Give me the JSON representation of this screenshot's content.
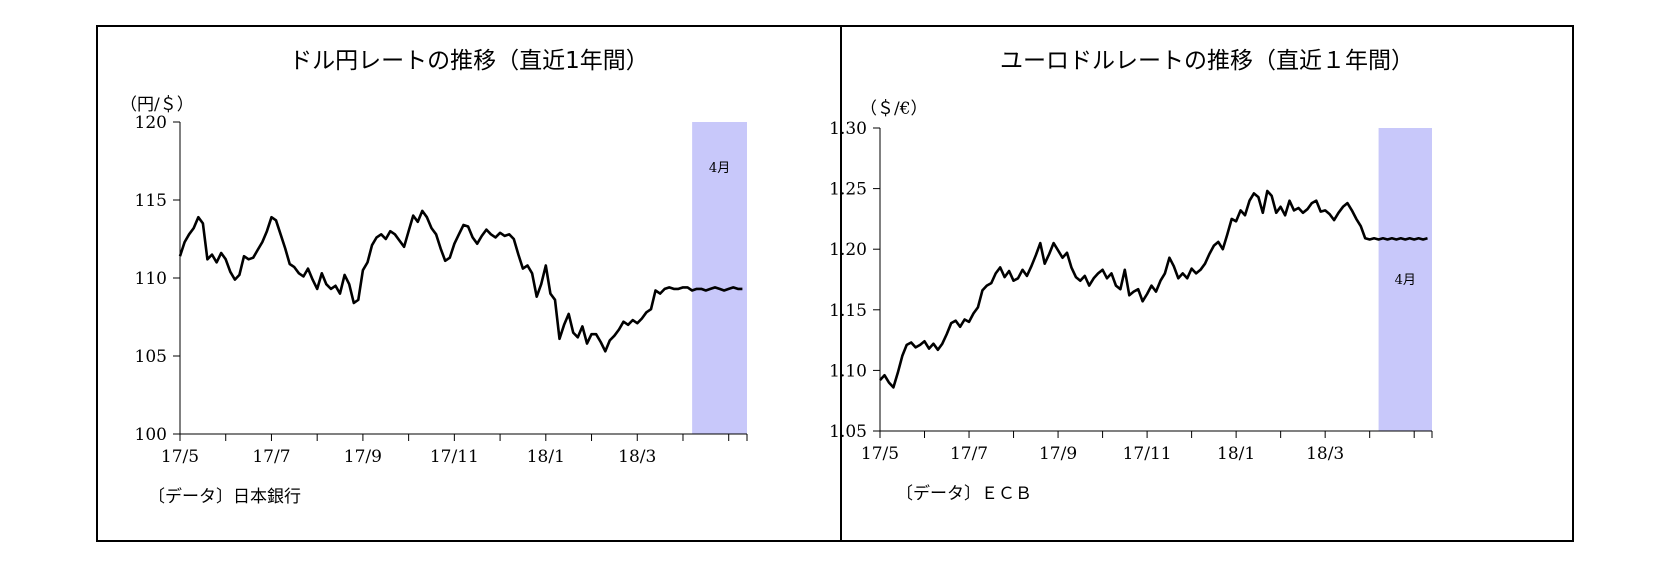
{
  "charts": [
    {
      "id": "usdjpy",
      "title": "ドル円レートの推移（直近1年間）",
      "unit": "（円/＄）",
      "source": "〔データ〕日本銀行",
      "highlight_label": "4月",
      "colors": {
        "line": "#000000",
        "highlight": "#c8c8fa"
      }
    },
    {
      "id": "eurusd",
      "title": "ユーロドルレートの推移（直近１年間）",
      "unit": "（＄/€）",
      "source": "〔データ〕ＥＣＢ",
      "highlight_label": "4月",
      "colors": {
        "line": "#000000",
        "highlight": "#c8c8fa"
      }
    }
  ],
  "chart_data": [
    {
      "type": "line",
      "title": "ドル円レートの推移（直近1年間）",
      "ylabel": "（円/＄）",
      "ylim": [
        100,
        120
      ],
      "yticks": [
        100,
        105,
        110,
        115,
        120
      ],
      "ytick_labels": [
        "100",
        "105",
        "110",
        "115",
        "120"
      ],
      "xlim": [
        0,
        12.4
      ],
      "xticks": [
        0,
        2,
        4,
        6,
        8,
        10
      ],
      "xtick_labels": [
        "17/5",
        "17/7",
        "17/9",
        "17/11",
        "18/1",
        "18/3"
      ],
      "shaded_range": [
        11.2,
        12.4
      ],
      "shaded_label": "4月",
      "x": [
        0.0,
        0.1,
        0.2,
        0.3,
        0.4,
        0.5,
        0.6,
        0.7,
        0.8,
        0.9,
        1.0,
        1.1,
        1.2,
        1.3,
        1.4,
        1.5,
        1.6,
        1.7,
        1.8,
        1.9,
        2.0,
        2.1,
        2.2,
        2.3,
        2.4,
        2.5,
        2.6,
        2.7,
        2.8,
        2.9,
        3.0,
        3.1,
        3.2,
        3.3,
        3.4,
        3.5,
        3.6,
        3.7,
        3.8,
        3.9,
        4.0,
        4.1,
        4.2,
        4.3,
        4.4,
        4.5,
        4.6,
        4.7,
        4.8,
        4.9,
        5.0,
        5.1,
        5.2,
        5.3,
        5.4,
        5.5,
        5.6,
        5.7,
        5.8,
        5.9,
        6.0,
        6.1,
        6.2,
        6.3,
        6.4,
        6.5,
        6.6,
        6.7,
        6.8,
        6.9,
        7.0,
        7.1,
        7.2,
        7.3,
        7.4,
        7.5,
        7.6,
        7.7,
        7.8,
        7.9,
        8.0,
        8.1,
        8.2,
        8.3,
        8.4,
        8.5,
        8.6,
        8.7,
        8.8,
        8.9,
        9.0,
        9.1,
        9.2,
        9.3,
        9.4,
        9.5,
        9.6,
        9.7,
        9.8,
        9.9,
        10.0,
        10.1,
        10.2,
        10.3,
        10.4,
        10.5,
        10.6,
        10.7,
        10.8,
        10.9,
        11.0,
        11.1,
        11.2,
        11.3,
        11.4,
        11.5,
        11.6,
        11.7,
        11.8,
        11.9,
        12.0,
        12.1,
        12.2,
        12.3
      ],
      "series": [
        {
          "values": [
            111.4,
            112.3,
            112.8,
            113.2,
            113.9,
            113.5,
            111.2,
            111.5,
            111.0,
            111.6,
            111.2,
            110.4,
            109.9,
            110.2,
            111.4,
            111.2,
            111.3,
            111.8,
            112.3,
            113.0,
            113.9,
            113.7,
            112.8,
            111.9,
            110.9,
            110.7,
            110.3,
            110.1,
            110.6,
            109.9,
            109.3,
            110.3,
            109.6,
            109.3,
            109.5,
            109.0,
            110.2,
            109.6,
            108.4,
            108.6,
            110.5,
            111.0,
            112.1,
            112.6,
            112.8,
            112.5,
            113.0,
            112.8,
            112.4,
            112.0,
            113.0,
            114.0,
            113.6,
            114.3,
            113.9,
            113.2,
            112.8,
            111.9,
            111.1,
            111.3,
            112.2,
            112.8,
            113.4,
            113.3,
            112.6,
            112.2,
            112.7,
            113.1,
            112.8,
            112.6,
            112.9,
            112.7,
            112.8,
            112.5,
            111.5,
            110.6,
            110.8,
            110.3,
            108.8,
            109.6,
            110.8,
            109.0,
            108.6,
            106.1,
            107.0,
            107.7,
            106.5,
            106.2,
            106.9,
            105.8,
            106.4,
            106.4,
            105.9,
            105.3,
            106.0,
            106.3,
            106.7,
            107.2,
            107.0,
            107.3,
            107.1,
            107.4,
            107.8,
            108.0,
            109.2,
            109.0,
            109.3,
            109.4,
            109.3,
            109.3,
            109.4,
            109.4,
            109.2,
            109.3,
            109.3,
            109.2,
            109.3,
            109.4,
            109.3,
            109.2,
            109.3,
            109.4,
            109.3,
            109.3
          ]
        }
      ]
    },
    {
      "type": "line",
      "title": "ユーロドルレートの推移（直近１年間）",
      "ylabel": "（＄/€）",
      "ylim": [
        1.05,
        1.3
      ],
      "yticks": [
        1.05,
        1.1,
        1.15,
        1.2,
        1.25,
        1.3
      ],
      "ytick_labels": [
        "1.05",
        "1.10",
        "1.15",
        "1.20",
        "1.25",
        "1.30"
      ],
      "xlim": [
        0,
        12.4
      ],
      "xticks": [
        0,
        2,
        4,
        6,
        8,
        10
      ],
      "xtick_labels": [
        "17/5",
        "17/7",
        "17/9",
        "17/11",
        "18/1",
        "18/3"
      ],
      "shaded_range": [
        11.2,
        12.4
      ],
      "shaded_label": "4月",
      "x": [
        0.0,
        0.1,
        0.2,
        0.3,
        0.4,
        0.5,
        0.6,
        0.7,
        0.8,
        0.9,
        1.0,
        1.1,
        1.2,
        1.3,
        1.4,
        1.5,
        1.6,
        1.7,
        1.8,
        1.9,
        2.0,
        2.1,
        2.2,
        2.3,
        2.4,
        2.5,
        2.6,
        2.7,
        2.8,
        2.9,
        3.0,
        3.1,
        3.2,
        3.3,
        3.4,
        3.5,
        3.6,
        3.7,
        3.8,
        3.9,
        4.0,
        4.1,
        4.2,
        4.3,
        4.4,
        4.5,
        4.6,
        4.7,
        4.8,
        4.9,
        5.0,
        5.1,
        5.2,
        5.3,
        5.4,
        5.5,
        5.6,
        5.7,
        5.8,
        5.9,
        6.0,
        6.1,
        6.2,
        6.3,
        6.4,
        6.5,
        6.6,
        6.7,
        6.8,
        6.9,
        7.0,
        7.1,
        7.2,
        7.3,
        7.4,
        7.5,
        7.6,
        7.7,
        7.8,
        7.9,
        8.0,
        8.1,
        8.2,
        8.3,
        8.4,
        8.5,
        8.6,
        8.7,
        8.8,
        8.9,
        9.0,
        9.1,
        9.2,
        9.3,
        9.4,
        9.5,
        9.6,
        9.7,
        9.8,
        9.9,
        10.0,
        10.1,
        10.2,
        10.3,
        10.4,
        10.5,
        10.6,
        10.7,
        10.8,
        10.9,
        11.0,
        11.1,
        11.2,
        11.3,
        11.4,
        11.5,
        11.6,
        11.7,
        11.8,
        11.9,
        12.0,
        12.1,
        12.2,
        12.3
      ],
      "series": [
        {
          "values": [
            1.092,
            1.096,
            1.09,
            1.086,
            1.098,
            1.112,
            1.121,
            1.123,
            1.119,
            1.121,
            1.124,
            1.118,
            1.122,
            1.117,
            1.122,
            1.13,
            1.139,
            1.141,
            1.136,
            1.142,
            1.14,
            1.147,
            1.152,
            1.166,
            1.17,
            1.172,
            1.18,
            1.185,
            1.177,
            1.182,
            1.174,
            1.176,
            1.183,
            1.178,
            1.186,
            1.195,
            1.205,
            1.188,
            1.196,
            1.205,
            1.199,
            1.193,
            1.197,
            1.185,
            1.177,
            1.174,
            1.178,
            1.17,
            1.176,
            1.18,
            1.183,
            1.176,
            1.18,
            1.17,
            1.167,
            1.183,
            1.162,
            1.165,
            1.167,
            1.157,
            1.163,
            1.17,
            1.165,
            1.174,
            1.18,
            1.193,
            1.186,
            1.176,
            1.18,
            1.176,
            1.184,
            1.18,
            1.183,
            1.188,
            1.196,
            1.203,
            1.206,
            1.2,
            1.212,
            1.225,
            1.223,
            1.232,
            1.228,
            1.24,
            1.246,
            1.243,
            1.23,
            1.248,
            1.244,
            1.23,
            1.235,
            1.228,
            1.24,
            1.232,
            1.234,
            1.23,
            1.233,
            1.238,
            1.24,
            1.231,
            1.232,
            1.229,
            1.224,
            1.23,
            1.235,
            1.238,
            1.232,
            1.225,
            1.219,
            1.209,
            1.208,
            1.209,
            1.208,
            1.209,
            1.208,
            1.209,
            1.208,
            1.209,
            1.208,
            1.209,
            1.208,
            1.209,
            1.208,
            1.209
          ]
        }
      ]
    }
  ]
}
